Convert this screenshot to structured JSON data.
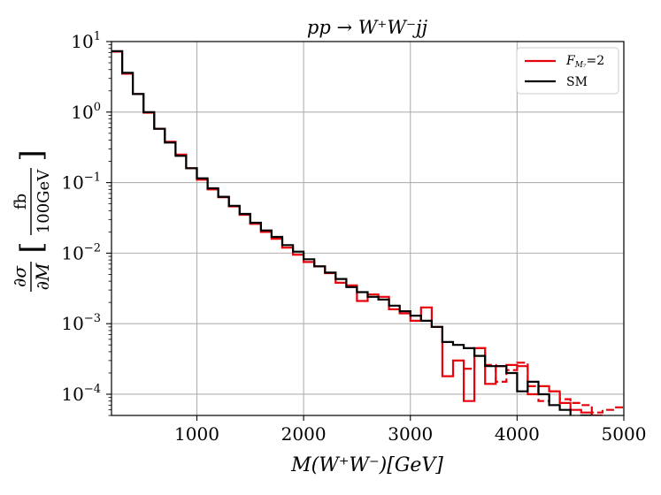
{
  "chart_data": {
    "type": "line",
    "title": "pp → W⁺W⁻jj",
    "xlabel": "M(W⁺W⁻)[GeV]",
    "ylabel_numerator": "∂σ",
    "ylabel_denominator": "∂M",
    "ylabel_unit_numerator": "fb",
    "ylabel_unit_denominator": "100GeV",
    "xlim": [
      200,
      5000
    ],
    "ylim": [
      5e-05,
      10
    ],
    "yscale": "log",
    "grid": true,
    "legend_position": "top-right",
    "x_ticks": [
      1000,
      2000,
      3000,
      4000,
      5000
    ],
    "x_tick_labels": [
      "1000",
      "2000",
      "3000",
      "4000",
      "5000"
    ],
    "y_ticks": [
      0.0001,
      0.001,
      0.01,
      0.1,
      1,
      10
    ],
    "y_tick_labels": [
      {
        "base": "10",
        "exp": "−4"
      },
      {
        "base": "10",
        "exp": "−3"
      },
      {
        "base": "10",
        "exp": "−2"
      },
      {
        "base": "10",
        "exp": "−1"
      },
      {
        "base": "10",
        "exp": "0"
      },
      {
        "base": "10",
        "exp": "1"
      }
    ],
    "bin_edges": [
      200,
      300,
      400,
      500,
      600,
      700,
      800,
      900,
      1000,
      1100,
      1200,
      1300,
      1400,
      1500,
      1600,
      1700,
      1800,
      1900,
      2000,
      2100,
      2200,
      2300,
      2400,
      2500,
      2600,
      2700,
      2800,
      2900,
      3000,
      3100,
      3200,
      3300,
      3400,
      3500,
      3600,
      3700,
      3800,
      3900,
      4000,
      4100,
      4200,
      4300,
      4400,
      4500,
      4600,
      4700,
      4800,
      4900
    ],
    "series": [
      {
        "name": "F_{M7}=2",
        "label_main": "F",
        "label_sub": "M7",
        "label_suffix": "=2",
        "color": "#e8000b",
        "style": "solid",
        "values": [
          7.2,
          3.5,
          1.8,
          0.98,
          0.58,
          0.38,
          0.25,
          0.16,
          0.11,
          0.08,
          0.062,
          0.046,
          0.035,
          0.026,
          0.02,
          0.016,
          0.012,
          0.0095,
          0.0075,
          0.0065,
          0.0052,
          0.0038,
          0.0035,
          0.0021,
          0.0026,
          0.0024,
          0.0016,
          0.0014,
          0.0011,
          0.0017,
          0.0009,
          0.00018,
          0.0003,
          8e-05,
          0.00045,
          0.00014,
          0.00025,
          0.00026,
          0.00025,
          0.0001,
          0.00013,
          0.00011,
          7.5e-05,
          6e-05,
          5.5e-05,
          5e-05,
          null,
          null
        ]
      },
      {
        "name": "F_{M7}=2 (dashed)",
        "color": "#e8000b",
        "style": "dashed",
        "values": [
          null,
          null,
          null,
          null,
          null,
          null,
          null,
          null,
          null,
          null,
          null,
          null,
          null,
          null,
          null,
          null,
          null,
          null,
          null,
          null,
          null,
          null,
          null,
          null,
          null,
          null,
          null,
          null,
          null,
          null,
          null,
          null,
          null,
          0.00023,
          0.00045,
          0.00026,
          0.00015,
          0.00022,
          0.00028,
          0.00013,
          8e-05,
          0.00011,
          8.5e-05,
          7.5e-05,
          7e-05,
          5.5e-05,
          6e-05,
          6.5e-05
        ]
      },
      {
        "name": "SM",
        "color": "#000000",
        "style": "solid",
        "values": [
          7.3,
          3.6,
          1.8,
          1.0,
          0.58,
          0.37,
          0.24,
          0.16,
          0.115,
          0.083,
          0.063,
          0.047,
          0.036,
          0.027,
          0.021,
          0.017,
          0.013,
          0.0105,
          0.0082,
          0.0065,
          0.0053,
          0.0043,
          0.0033,
          0.0028,
          0.0024,
          0.0022,
          0.0018,
          0.0015,
          0.0013,
          0.0011,
          0.0009,
          0.00055,
          0.0005,
          0.00045,
          0.00035,
          0.00025,
          0.00025,
          0.0002,
          0.00011,
          0.00015,
          0.0001,
          7e-05,
          6e-05,
          4.5e-05,
          5e-05,
          4e-05,
          null,
          null
        ]
      }
    ],
    "legend": [
      {
        "label_main": "F",
        "label_sub": "M₇",
        "label_suffix": "=2",
        "color": "#e8000b"
      },
      {
        "label": "SM",
        "color": "#000000"
      }
    ]
  }
}
